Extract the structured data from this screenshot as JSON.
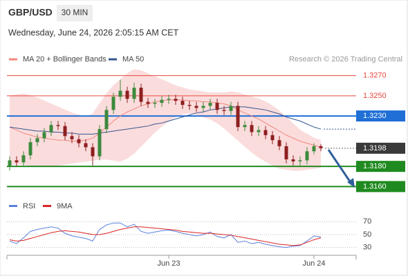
{
  "header": {
    "symbol": "GBP/USD",
    "timeframe": "30 MIN",
    "timestamp": "Wednesday, June 24, 2026 2:05:15 AM CET"
  },
  "chart_data": [
    {
      "type": "candlestick",
      "credit": "Research © 2026 Trading Central",
      "up_color": "#3d8a3d",
      "down_color": "#8e1f1f",
      "ylim": [
        1.315,
        1.328
      ],
      "open": [
        1.318,
        1.3186,
        1.3184,
        1.3191,
        1.3204,
        1.3208,
        1.3214,
        1.3221,
        1.322,
        1.321,
        1.3207,
        1.3203,
        1.3199,
        1.319,
        1.3217,
        1.3236,
        1.3249,
        1.3255,
        1.3247,
        1.3258,
        1.3244,
        1.3242,
        1.3243,
        1.3246,
        1.3247,
        1.3245,
        1.3241,
        1.324,
        1.3238,
        1.324,
        1.3243,
        1.3236,
        1.3235,
        1.324,
        1.3219,
        1.3221,
        1.3214,
        1.3216,
        1.3211,
        1.3206,
        1.32,
        1.3187,
        1.3185,
        1.3186,
        1.3195,
        1.32
      ],
      "high": [
        1.319,
        1.319,
        1.3195,
        1.3208,
        1.3212,
        1.3218,
        1.3225,
        1.3225,
        1.3224,
        1.3214,
        1.3211,
        1.3207,
        1.3203,
        1.3221,
        1.324,
        1.3253,
        1.3266,
        1.3259,
        1.3263,
        1.3262,
        1.3248,
        1.3247,
        1.325,
        1.3251,
        1.3251,
        1.3249,
        1.3245,
        1.3244,
        1.3244,
        1.3247,
        1.3247,
        1.324,
        1.3244,
        1.3244,
        1.3225,
        1.3225,
        1.322,
        1.322,
        1.3215,
        1.321,
        1.3204,
        1.3191,
        1.319,
        1.3199,
        1.3203,
        1.3202
      ],
      "low": [
        1.3176,
        1.318,
        1.318,
        1.3187,
        1.32,
        1.3204,
        1.321,
        1.3216,
        1.3206,
        1.3203,
        1.3199,
        1.3195,
        1.3181,
        1.3186,
        1.3213,
        1.3232,
        1.3245,
        1.3243,
        1.3243,
        1.324,
        1.3238,
        1.3238,
        1.3239,
        1.3242,
        1.3241,
        1.3237,
        1.3236,
        1.3234,
        1.3234,
        1.3236,
        1.3232,
        1.3231,
        1.3231,
        1.3215,
        1.3215,
        1.321,
        1.321,
        1.3207,
        1.3202,
        1.3196,
        1.3183,
        1.3181,
        1.3181,
        1.3182,
        1.3192,
        1.3195
      ],
      "close": [
        1.3186,
        1.3184,
        1.3191,
        1.3204,
        1.3208,
        1.3214,
        1.3221,
        1.322,
        1.321,
        1.3207,
        1.3203,
        1.3199,
        1.319,
        1.3217,
        1.3236,
        1.3249,
        1.3255,
        1.3247,
        1.3258,
        1.3244,
        1.3242,
        1.3243,
        1.3246,
        1.3247,
        1.3245,
        1.3241,
        1.324,
        1.3238,
        1.324,
        1.3243,
        1.3236,
        1.3235,
        1.324,
        1.3219,
        1.3221,
        1.3214,
        1.3216,
        1.3211,
        1.3206,
        1.32,
        1.3187,
        1.3185,
        1.3186,
        1.3195,
        1.32,
        1.3198
      ],
      "band_color": "#fbdcdc",
      "bb_upper": [
        1.325,
        1.3251,
        1.3252,
        1.325,
        1.3248,
        1.3245,
        1.3242,
        1.3239,
        1.3236,
        1.3233,
        1.3231,
        1.3229,
        1.3232,
        1.3242,
        1.3252,
        1.326,
        1.3266,
        1.3272,
        1.3276,
        1.3275,
        1.3272,
        1.3269,
        1.3266,
        1.3263,
        1.326,
        1.3258,
        1.3256,
        1.3255,
        1.3254,
        1.3253,
        1.3253,
        1.3253,
        1.3254,
        1.3253,
        1.3251,
        1.3249,
        1.3247,
        1.3244,
        1.324,
        1.3235,
        1.3229,
        1.3222,
        1.3216,
        1.3212,
        1.3208,
        1.3206
      ],
      "bb_lower": [
        1.3182,
        1.3182,
        1.3182,
        1.3181,
        1.3181,
        1.318,
        1.318,
        1.3181,
        1.3182,
        1.3183,
        1.3184,
        1.3185,
        1.3186,
        1.3187,
        1.3187,
        1.3186,
        1.3185,
        1.3188,
        1.3193,
        1.32,
        1.3207,
        1.3214,
        1.322,
        1.3225,
        1.3229,
        1.3232,
        1.3233,
        1.3231,
        1.3229,
        1.3227,
        1.3223,
        1.3218,
        1.3212,
        1.3206,
        1.32,
        1.3194,
        1.3189,
        1.3185,
        1.3181,
        1.3178,
        1.3177,
        1.3176,
        1.3176,
        1.3177,
        1.3178,
        1.3179
      ],
      "series": [
        {
          "name": "MA 20 + Bollinger Bands",
          "color": "#f0877e",
          "values": [
            1.3219,
            1.3216,
            1.3213,
            1.3211,
            1.3209,
            1.3208,
            1.3207,
            1.3206,
            1.3206,
            1.3205,
            1.3205,
            1.3206,
            1.3208,
            1.3213,
            1.3219,
            1.3225,
            1.323,
            1.3234,
            1.3237,
            1.324,
            1.3242,
            1.3244,
            1.3245,
            1.3246,
            1.3246,
            1.3246,
            1.3245,
            1.3245,
            1.3244,
            1.3244,
            1.3243,
            1.3242,
            1.324,
            1.3236,
            1.3233,
            1.323,
            1.3227,
            1.3223,
            1.3219,
            1.3215,
            1.3211,
            1.3208,
            1.3205,
            1.3203,
            1.3201,
            1.3199
          ]
        },
        {
          "name": "MA 50",
          "color": "#34558f",
          "values": [
            1.3219,
            1.3218,
            1.3217,
            1.3216,
            1.3215,
            1.3215,
            1.3214,
            1.3214,
            1.3213,
            1.3213,
            1.3212,
            1.3212,
            1.3212,
            1.3213,
            1.3214,
            1.3215,
            1.3216,
            1.3217,
            1.3218,
            1.3219,
            1.322,
            1.3222,
            1.3223,
            1.3225,
            1.3227,
            1.3229,
            1.3231,
            1.3233,
            1.3234,
            1.3236,
            1.3237,
            1.3238,
            1.3239,
            1.3239,
            1.3239,
            1.3238,
            1.3237,
            1.3236,
            1.3234,
            1.3232,
            1.3229,
            1.3227,
            1.3225,
            1.3222,
            1.3219,
            1.3217
          ]
        }
      ],
      "levels": [
        {
          "value": 1.327,
          "label": "1.3270",
          "color": "#e8463c",
          "box": false,
          "dash": false
        },
        {
          "value": 1.325,
          "label": "1.3250",
          "color": "#e8463c",
          "box": false,
          "dash": false
        },
        {
          "value": 1.323,
          "label": "1.3230",
          "color": "#1f6fd6",
          "box": true,
          "dash": false
        },
        {
          "value": 1.3198,
          "label": "1.3198",
          "color": "#3a3a3a",
          "box": true,
          "dash": true
        },
        {
          "value": 1.318,
          "label": "1.3180",
          "color": "#1f8a1f",
          "box": true,
          "dash": false
        },
        {
          "value": 1.316,
          "label": "1.3160",
          "color": "#1f8a1f",
          "box": true,
          "dash": false
        }
      ]
    },
    {
      "type": "line",
      "ylim": [
        20,
        80
      ],
      "yticks": [
        70,
        50,
        30
      ],
      "categories": [
        null,
        null,
        null,
        null,
        null,
        null,
        null,
        null,
        null,
        null,
        null,
        null,
        null,
        null,
        null,
        null,
        null,
        null,
        null,
        null,
        null,
        null,
        null,
        "Jun 23",
        null,
        null,
        null,
        null,
        null,
        null,
        null,
        null,
        null,
        null,
        null,
        null,
        null,
        null,
        null,
        null,
        null,
        null,
        null,
        null,
        "Jun 24",
        null
      ],
      "series": [
        {
          "name": "RSI",
          "color": "#5b7fdc",
          "values": [
            40,
            36,
            45,
            55,
            58,
            60,
            62,
            60,
            52,
            48,
            46,
            44,
            40,
            58,
            65,
            68,
            68,
            62,
            66,
            55,
            52,
            54,
            56,
            57,
            55,
            52,
            50,
            48,
            50,
            54,
            47,
            45,
            50,
            38,
            40,
            36,
            38,
            35,
            33,
            31,
            30,
            32,
            33,
            40,
            48,
            46
          ]
        },
        {
          "name": "9MA",
          "color": "#dd2222",
          "values": [
            42,
            40,
            41,
            44,
            47,
            50,
            53,
            55,
            56,
            55,
            54,
            52,
            50,
            50,
            52,
            55,
            58,
            60,
            62,
            62,
            61,
            60,
            59,
            58,
            57,
            55,
            54,
            53,
            52,
            52,
            51,
            50,
            49,
            47,
            45,
            43,
            41,
            39,
            37,
            35,
            34,
            33,
            34,
            38,
            42,
            45
          ]
        }
      ]
    }
  ]
}
